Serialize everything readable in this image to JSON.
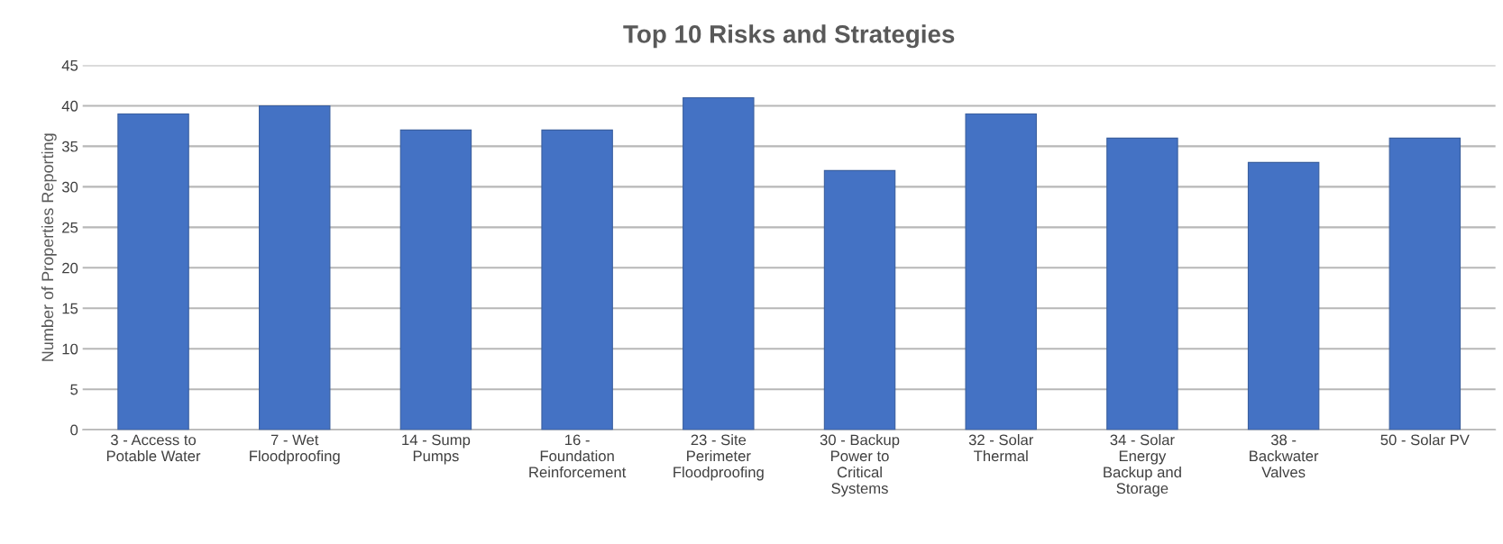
{
  "chart_data": {
    "type": "bar",
    "title": "Top 10 Risks and Strategies",
    "ylabel": "Number of Properties Reporting",
    "categories": [
      "3 - Access to\nPotable Water",
      "7 - Wet\nFloodproofing",
      "14 - Sump\nPumps",
      "16 -\nFoundation\nReinforcement",
      "23 - Site\nPerimeter\nFloodproofing",
      "30 - Backup\nPower to\nCritical\nSystems",
      "32 - Solar\nThermal",
      "34 - Solar\nEnergy\nBackup and\nStorage",
      "38 -\nBackwater\nValves",
      "50 - Solar PV"
    ],
    "values": [
      39,
      40,
      37,
      37,
      41,
      32,
      39,
      36,
      33,
      36
    ],
    "color": "#4472c4",
    "ylim": [
      0,
      45
    ],
    "yticks": [
      0,
      5,
      10,
      15,
      20,
      25,
      30,
      35,
      40,
      45
    ],
    "grid": "y"
  }
}
